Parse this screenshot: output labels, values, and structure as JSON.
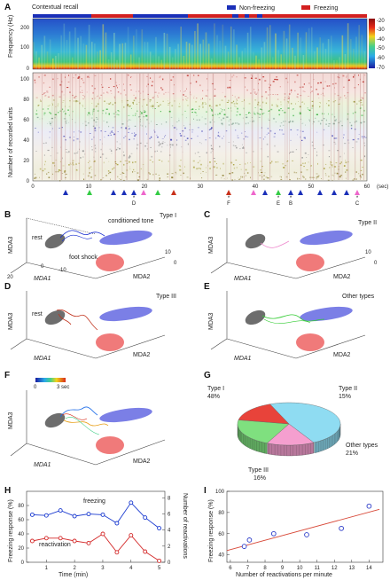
{
  "panels": {
    "A": "A",
    "B": "B",
    "C": "C",
    "D": "D",
    "E": "E",
    "F": "F",
    "G": "G",
    "H": "H",
    "I": "I"
  },
  "panel_a": {
    "title": "Contextual recall",
    "legend_nonfreezing": "Non-freezing",
    "legend_freezing": "Freezing",
    "freq_label": "Frequency (Hz)",
    "freq_ticks": [
      "200",
      "100",
      "0"
    ],
    "colorbar_ticks": [
      "-20",
      "-30",
      "-40",
      "-50",
      "-60",
      "-70"
    ],
    "units_label": "Number of recorded units",
    "units_ticks": [
      "100",
      "80",
      "60",
      "40",
      "20",
      "0"
    ],
    "x_ticks": [
      "0",
      "10",
      "20",
      "30",
      "40",
      "50",
      "60"
    ],
    "x_unit": "(sec)",
    "event_letters": [
      "D",
      "F",
      "E",
      "B",
      "C"
    ],
    "colors": {
      "nonfreezing": "#1a2fb8",
      "freezing": "#d32020"
    }
  },
  "panel_b": {
    "type": "Type I",
    "conditioned_tone": "conditioned tone",
    "rest": "rest",
    "foot_shock": "foot shock"
  },
  "panel_c": {
    "type": "Type II"
  },
  "panel_d": {
    "type": "Type III",
    "rest": "rest"
  },
  "panel_e": {
    "type": "Other types"
  },
  "panel_f": {
    "cb_min": "0",
    "cb_max": "3 sec"
  },
  "axes3d": {
    "z": "MDA3",
    "x": "MDA1",
    "y": "MDA2",
    "x_ticks": [
      "20",
      "10",
      "0",
      "-10"
    ],
    "y_ticks": [
      "10",
      "0",
      "-5"
    ],
    "y_ticks_e": [
      "10",
      "0",
      "-5"
    ]
  },
  "chart_data": [
    {
      "type": "pie",
      "title": "",
      "slices": [
        {
          "label": "Type I",
          "value": 48,
          "text": "48%",
          "color": "#8fdcf2"
        },
        {
          "label": "Type II",
          "value": 15,
          "text": "15%",
          "color": "#f59fcf"
        },
        {
          "label": "Other types",
          "value": 21,
          "text": "21%",
          "color": "#7fe07f"
        },
        {
          "label": "Type III",
          "value": 16,
          "text": "16%",
          "color": "#e8433a"
        }
      ]
    },
    {
      "type": "line",
      "xlabel": "Time (min)",
      "ylabel": "Freezing response (%)",
      "ylabel_right": "Number of reactivations",
      "x_ticks": [
        "1",
        "2",
        "3",
        "4",
        "5"
      ],
      "y_ticks": [
        "80",
        "60",
        "40",
        "20",
        "0"
      ],
      "series": [
        {
          "name": "freezing",
          "color": "#1a3ad0",
          "x": [
            0.5,
            1.0,
            1.5,
            2.0,
            2.5,
            3.0,
            3.5,
            4.0,
            4.5,
            5.0
          ],
          "y": [
            67,
            66,
            73,
            65,
            68,
            67,
            55,
            84,
            63,
            48
          ]
        },
        {
          "name": "reactivation",
          "color": "#d42a2a",
          "x": [
            0.5,
            1.0,
            1.5,
            2.0,
            2.5,
            3.0,
            3.5,
            4.0,
            4.5,
            5.0
          ],
          "y": [
            30,
            34,
            34,
            30,
            27,
            40,
            14,
            38,
            15,
            2
          ]
        }
      ]
    },
    {
      "type": "scatter",
      "xlabel": "Number of reactivations per minute",
      "ylabel": "Freezing response (%)",
      "x_ticks": [
        "6",
        "7",
        "8",
        "9",
        "10",
        "11",
        "12",
        "13",
        "14"
      ],
      "y_ticks": [
        "100",
        "80",
        "60",
        "40"
      ],
      "xlim": [
        5.8,
        14.8
      ],
      "ylim": [
        33,
        100
      ],
      "points": [
        {
          "x": 6.8,
          "y": 48
        },
        {
          "x": 7.1,
          "y": 54
        },
        {
          "x": 8.5,
          "y": 60
        },
        {
          "x": 10.4,
          "y": 59
        },
        {
          "x": 12.4,
          "y": 65
        },
        {
          "x": 14.0,
          "y": 86
        }
      ],
      "fit": {
        "x": [
          5.8,
          14.6
        ],
        "y": [
          44,
          83
        ]
      }
    }
  ]
}
